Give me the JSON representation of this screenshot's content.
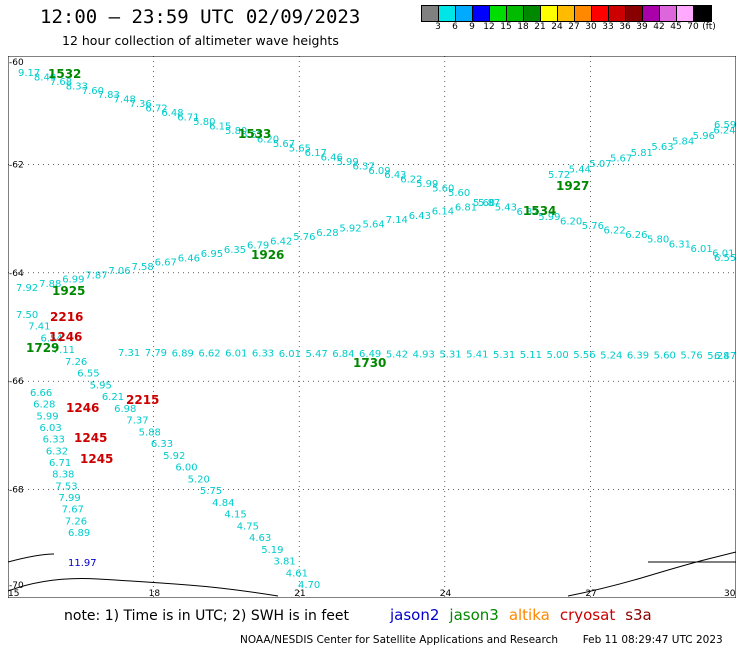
{
  "header": {
    "title": "12:00 – 23:59 UTC 02/09/2023",
    "subtitle": "12 hour collection of altimeter wave heights"
  },
  "colorbar": {
    "colors": [
      "#808080",
      "#00e5e5",
      "#00aaff",
      "#0000ff",
      "#00dd00",
      "#00bb00",
      "#008800",
      "#ffff00",
      "#ffbb00",
      "#ff8800",
      "#ff0000",
      "#cc0000",
      "#880000",
      "#aa00aa",
      "#dd66dd",
      "#ffaaff",
      "#000000"
    ],
    "labels": [
      "3",
      "6",
      "9",
      "12",
      "15",
      "18",
      "21",
      "24",
      "27",
      "30",
      "33",
      "36",
      "39",
      "42",
      "45",
      "70"
    ],
    "unit": "(ft)"
  },
  "axes": {
    "x_ticks": [
      "15",
      "18",
      "21",
      "24",
      "27",
      "30"
    ],
    "y_ticks": [
      "-60",
      "-62",
      "-64",
      "-66",
      "-68",
      "-70"
    ]
  },
  "tracks": [
    {
      "label": "1532",
      "label_color": "#008800",
      "color": "#00cccc",
      "values": [
        "9.17",
        "8.49",
        "7.68",
        "8.33",
        "7.60",
        "7.83",
        "7.48",
        "7.36",
        "6.72",
        "6.48",
        "6.71",
        "5.80",
        "6.15",
        "5.80",
        "6.67",
        "6.20",
        "5.67",
        "5.65",
        "6.17",
        "6.46",
        "5.99",
        "6.37",
        "6.09",
        "6.43",
        "6.22",
        "5.99",
        "5.60",
        "5.60"
      ]
    },
    {
      "label": "1533",
      "label_color": "#008800",
      "color": "#00cccc",
      "values": []
    },
    {
      "label": "1927",
      "label_color": "#008800",
      "color": "#00cccc",
      "values": [
        "5.72",
        "5.44",
        "5.07",
        "5.67",
        "5.81",
        "5.63",
        "5.84",
        "5.96",
        "6.24",
        "6.59"
      ]
    },
    {
      "label": "1534",
      "label_color": "#008800",
      "color": "#00cccc",
      "values": [
        "5.68",
        "5.43",
        "6.32",
        "5.99",
        "6.20",
        "5.76",
        "6.22",
        "6.26",
        "5.80",
        "6.31",
        "6.01",
        "6.01",
        "6.55"
      ]
    },
    {
      "label": "1926",
      "label_color": "#008800",
      "color": "#00cccc",
      "values": [
        "7.92",
        "7.88",
        "6.99",
        "7.87",
        "7.06",
        "7.58",
        "6.67",
        "6.46",
        "6.95",
        "6.35",
        "6.79",
        "6.42",
        "5.76",
        "6.28",
        "5.92",
        "5.64",
        "7.14",
        "6.43",
        "6.14",
        "6.81",
        "5.87"
      ]
    },
    {
      "label": "1925",
      "label_color": "#008800",
      "color": "#00cccc",
      "values": []
    },
    {
      "label": "1730",
      "label_color": "#008800",
      "color": "#00cccc",
      "values": [
        "7.31",
        "7.79",
        "6.89",
        "6.62",
        "6.01",
        "6.33",
        "6.01",
        "5.47",
        "6.84",
        "6.49",
        "5.42",
        "4.93",
        "5.31",
        "5.41",
        "5.31",
        "5.11",
        "5.00",
        "5.56",
        "5.24",
        "6.39",
        "5.60",
        "5.76",
        "5.28",
        "6.47"
      ]
    },
    {
      "label": "1729",
      "label_color": "#008800",
      "color": "#00cccc",
      "values": [
        "7.50",
        "7.41",
        "6.54",
        "7.11",
        "7.26",
        "6.55",
        "5.95",
        "6.21",
        "6.98",
        "7.37",
        "5.88",
        "6.33",
        "5.92",
        "6.00",
        "5.20",
        "5.75",
        "4.84",
        "4.15",
        "4.75",
        "4.63",
        "5.19",
        "3.81",
        "4.61",
        "4.70"
      ]
    },
    {
      "label": "2216",
      "label_color": "#cc0000",
      "color": "#00cccc",
      "values": []
    },
    {
      "label": "1246",
      "label_color": "#cc0000",
      "color": "#00cccc",
      "values": [
        "6.66",
        "6.28",
        "5.99",
        "6.03",
        "6.33",
        "6.32",
        "6.71",
        "8.38",
        "7.53",
        "7.99",
        "7.67",
        "7.26",
        "6.89"
      ]
    },
    {
      "label": "2215",
      "label_color": "#cc0000",
      "color": "#00cccc",
      "values": []
    },
    {
      "label": "1245",
      "label_color": "#cc0000",
      "color": "#00cccc",
      "values": []
    }
  ],
  "extra_values": {
    "v1": "11.97"
  },
  "legend": {
    "note": "note: 1) Time is in UTC; 2) SWH is in feet",
    "satellites": [
      {
        "name": "jason2",
        "color": "#0000cc"
      },
      {
        "name": "jason3",
        "color": "#008800"
      },
      {
        "name": "altika",
        "color": "#ff8800"
      },
      {
        "name": "cryosat",
        "color": "#cc0000"
      },
      {
        "name": "s3a",
        "color": "#880000"
      }
    ]
  },
  "footer": {
    "credit": "NOAA/NESDIS Center for Satellite Applications and Research",
    "timestamp": "Feb 11 08:29:47 UTC 2023"
  }
}
